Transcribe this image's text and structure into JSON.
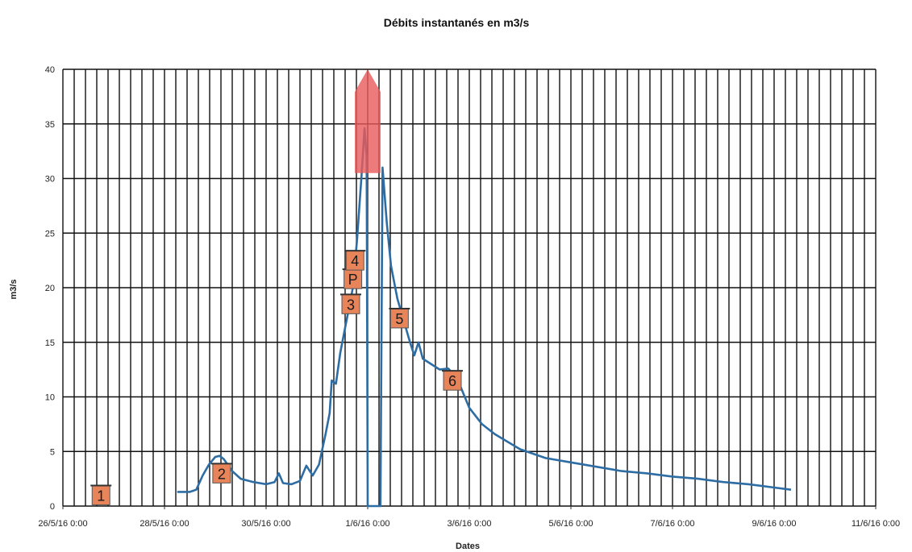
{
  "chart_data": {
    "type": "line",
    "title": "Débits instantanés en m3/s",
    "xlabel": "Dates",
    "ylabel": "m3/s",
    "ylim": [
      0,
      40
    ],
    "yticks": [
      0,
      5,
      10,
      15,
      20,
      25,
      30,
      35,
      40
    ],
    "xlim": [
      "2016-05-26T00:00",
      "2016-06-11T00:00"
    ],
    "xtick_labels": [
      "26/5/16 0:00",
      "28/5/16 0:00",
      "30/5/16 0:00",
      "1/6/16 0:00",
      "3/6/16 0:00",
      "5/6/16 0:00",
      "7/6/16 0:00",
      "9/6/16 0:00",
      "11/6/16 0:00"
    ],
    "grid": true,
    "line_color": "#2e6da4",
    "marker_color": "#e8845a",
    "arrow_color": "#e85a5a",
    "series": [
      {
        "values": [
          [
            "2016-05-28T06:00",
            1.3
          ],
          [
            "2016-05-28T12:00",
            1.3
          ],
          [
            "2016-05-28T15:00",
            1.5
          ],
          [
            "2016-05-28T18:00",
            2.8
          ],
          [
            "2016-05-28T21:00",
            3.8
          ],
          [
            "2016-05-29T00:00",
            4.5
          ],
          [
            "2016-05-29T02:00",
            4.6
          ],
          [
            "2016-05-29T04:00",
            4.3
          ],
          [
            "2016-05-29T08:00",
            3.2
          ],
          [
            "2016-05-29T12:00",
            2.5
          ],
          [
            "2016-05-29T18:00",
            2.2
          ],
          [
            "2016-05-30T00:00",
            2.0
          ],
          [
            "2016-05-30T04:00",
            2.2
          ],
          [
            "2016-05-30T06:00",
            3.0
          ],
          [
            "2016-05-30T08:00",
            2.1
          ],
          [
            "2016-05-30T12:00",
            2.0
          ],
          [
            "2016-05-30T16:00",
            2.3
          ],
          [
            "2016-05-30T19:00",
            3.7
          ],
          [
            "2016-05-30T22:00",
            2.8
          ],
          [
            "2016-05-31T01:00",
            3.8
          ],
          [
            "2016-05-31T04:00",
            6.5
          ],
          [
            "2016-05-31T06:00",
            8.5
          ],
          [
            "2016-05-31T07:00",
            11.5
          ],
          [
            "2016-05-31T09:00",
            11.2
          ],
          [
            "2016-05-31T11:00",
            14.0
          ],
          [
            "2016-05-31T13:00",
            16.0
          ],
          [
            "2016-05-31T15:00",
            18.0
          ],
          [
            "2016-05-31T17:00",
            20.0
          ],
          [
            "2016-05-31T19:00",
            24.5
          ],
          [
            "2016-05-31T21:00",
            30.0
          ],
          [
            "2016-05-31T22:30",
            34.6
          ],
          [
            "2016-05-31T23:30",
            32.0
          ],
          [
            "2016-06-01T00:00",
            0
          ],
          [
            "2016-06-01T06:00",
            0
          ],
          [
            "2016-06-01T07:00",
            31.0
          ],
          [
            "2016-06-01T09:00",
            26.0
          ],
          [
            "2016-06-01T11:00",
            22.0
          ],
          [
            "2016-06-01T14:00",
            19.0
          ],
          [
            "2016-06-01T17:00",
            17.0
          ],
          [
            "2016-06-01T20:00",
            15.0
          ],
          [
            "2016-06-01T22:00",
            13.8
          ],
          [
            "2016-06-02T00:00",
            15.0
          ],
          [
            "2016-06-02T02:00",
            13.5
          ],
          [
            "2016-06-02T06:00",
            13.0
          ],
          [
            "2016-06-02T10:00",
            12.5
          ],
          [
            "2016-06-02T14:00",
            12.6
          ],
          [
            "2016-06-02T18:00",
            11.8
          ],
          [
            "2016-06-03T00:00",
            9.0
          ],
          [
            "2016-06-03T06:00",
            7.5
          ],
          [
            "2016-06-03T12:00",
            6.6
          ],
          [
            "2016-06-04T00:00",
            5.2
          ],
          [
            "2016-06-04T12:00",
            4.4
          ],
          [
            "2016-06-05T00:00",
            4.0
          ],
          [
            "2016-06-05T12:00",
            3.6
          ],
          [
            "2016-06-06T00:00",
            3.2
          ],
          [
            "2016-06-06T12:00",
            3.0
          ],
          [
            "2016-06-07T00:00",
            2.7
          ],
          [
            "2016-06-07T12:00",
            2.5
          ],
          [
            "2016-06-08T00:00",
            2.2
          ],
          [
            "2016-06-08T12:00",
            2.0
          ],
          [
            "2016-06-09T00:00",
            1.7
          ],
          [
            "2016-06-09T08:00",
            1.5
          ]
        ]
      }
    ],
    "annotations": [
      {
        "label": "1",
        "x": "2016-05-26T18:00",
        "y": 1
      },
      {
        "label": "2",
        "x": "2016-05-29T03:00",
        "y": 3
      },
      {
        "label": "3",
        "x": "2016-05-31T16:00",
        "y": 18.5
      },
      {
        "label": "P",
        "x": "2016-05-31T17:00",
        "y": 20.8
      },
      {
        "label": "4",
        "x": "2016-05-31T18:00",
        "y": 22.5
      },
      {
        "label": "5",
        "x": "2016-06-01T15:00",
        "y": 17.2
      },
      {
        "label": "6",
        "x": "2016-06-02T16:00",
        "y": 11.5
      }
    ],
    "arrow": {
      "x": "2016-06-01T00:00",
      "y_from": 30.5,
      "y_to": 40
    }
  }
}
